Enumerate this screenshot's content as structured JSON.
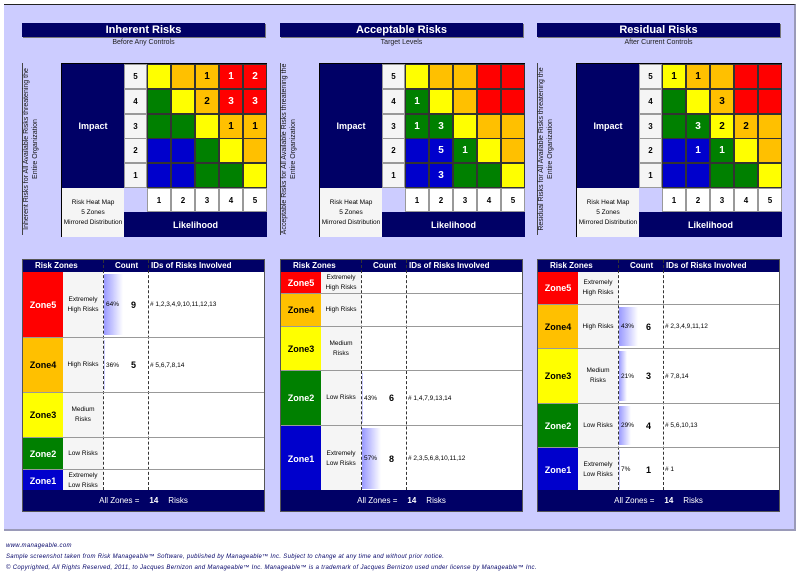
{
  "colors": {
    "navy": "#000066",
    "zone5": "#ff0000",
    "zone4": "#ffc000",
    "zone3": "#ffff00",
    "zone2": "#008000",
    "zone1": "#0000cc",
    "background": "#ccccff"
  },
  "grid_zone_map": [
    [
      3,
      4,
      4,
      5,
      5
    ],
    [
      2,
      3,
      4,
      5,
      5
    ],
    [
      2,
      2,
      3,
      4,
      4
    ],
    [
      1,
      1,
      2,
      3,
      4
    ],
    [
      1,
      1,
      2,
      2,
      3
    ]
  ],
  "common": {
    "impact": "Impact",
    "likelihood": "Likelihood",
    "impact_levels": [
      "5",
      "4",
      "3",
      "2",
      "1"
    ],
    "likelihood_levels": [
      "1",
      "2",
      "3",
      "4",
      "5"
    ],
    "heatmap_label": [
      "Risk Heat Map",
      "5 Zones",
      "Mirrored Distribution"
    ],
    "table_headers": {
      "zones": "Risk Zones",
      "count": "Count",
      "ids": "IDs of Risks Involved"
    },
    "total_prefix": "All Zones =",
    "total_suffix": "Risks"
  },
  "panels": [
    {
      "title": "Inherent Risks",
      "subtitle": "Before Any Controls",
      "side_label": "Inherent Risks for All Available Risks threatening the Entire Organization",
      "grid": [
        [
          "",
          "",
          "1",
          "1",
          "2"
        ],
        [
          "",
          "",
          "2",
          "3",
          "3"
        ],
        [
          "",
          "",
          "",
          "1",
          "1"
        ],
        [
          "",
          "",
          "",
          "",
          ""
        ],
        [
          "",
          "",
          "",
          "",
          ""
        ]
      ],
      "total": "14",
      "zones": [
        {
          "zone": "Zone5",
          "desc": "Extremely High Risks",
          "pct": "64%",
          "pct_value": 64,
          "count": "9",
          "ids": "# 1,2,3,4,9,10,11,12,13"
        },
        {
          "zone": "Zone4",
          "desc": "High Risks",
          "pct": "36%",
          "pct_value": 36,
          "count": "5",
          "ids": "# 5,6,7,8,14"
        },
        {
          "zone": "Zone3",
          "desc": "Medium Risks",
          "pct": "",
          "count": "",
          "ids": ""
        },
        {
          "zone": "Zone2",
          "desc": "Low Risks",
          "pct": "",
          "count": "",
          "ids": ""
        },
        {
          "zone": "Zone1",
          "desc": "Extremely Low Risks",
          "pct": "",
          "count": "",
          "ids": ""
        }
      ]
    },
    {
      "title": "Acceptable Risks",
      "subtitle": "Target Levels",
      "side_label": "Acceptable Risks for All Available Risks threatening the Entire Organization",
      "grid": [
        [
          "",
          "",
          "",
          "",
          ""
        ],
        [
          "1",
          "",
          "",
          "",
          ""
        ],
        [
          "1",
          "3",
          "",
          "",
          ""
        ],
        [
          "",
          "5",
          "1",
          "",
          ""
        ],
        [
          "",
          "3",
          "",
          "",
          ""
        ]
      ],
      "total": "14",
      "zones": [
        {
          "zone": "Zone5",
          "desc": "Extremely High Risks",
          "pct": "",
          "count": "",
          "ids": ""
        },
        {
          "zone": "Zone4",
          "desc": "High Risks",
          "pct": "",
          "count": "",
          "ids": ""
        },
        {
          "zone": "Zone3",
          "desc": "Medium Risks",
          "pct": "",
          "count": "",
          "ids": ""
        },
        {
          "zone": "Zone2",
          "desc": "Low Risks",
          "pct": "43%",
          "pct_value": 43,
          "count": "6",
          "ids": "# 1,4,7,9,13,14"
        },
        {
          "zone": "Zone1",
          "desc": "Extremely Low Risks",
          "pct": "57%",
          "pct_value": 57,
          "count": "8",
          "ids": "# 2,3,5,6,8,10,11,12"
        }
      ]
    },
    {
      "title": "Residual Risks",
      "subtitle": "After Current Controls",
      "side_label": "Residual Risks for All Available Risks threatening the Entire Organization",
      "grid": [
        [
          "1",
          "1",
          "",
          "",
          ""
        ],
        [
          "",
          "",
          "3",
          "",
          ""
        ],
        [
          "",
          "3",
          "2",
          "2",
          ""
        ],
        [
          "",
          "1",
          "1",
          "",
          ""
        ],
        [
          "",
          "",
          "",
          "",
          ""
        ]
      ],
      "total": "14",
      "zones": [
        {
          "zone": "Zone5",
          "desc": "Extremely High Risks",
          "pct": "",
          "count": "",
          "ids": ""
        },
        {
          "zone": "Zone4",
          "desc": "High Risks",
          "pct": "43%",
          "pct_value": 43,
          "count": "6",
          "ids": "# 2,3,4,9,11,12"
        },
        {
          "zone": "Zone3",
          "desc": "Medium Risks",
          "pct": "21%",
          "pct_value": 21,
          "count": "3",
          "ids": "# 7,8,14"
        },
        {
          "zone": "Zone2",
          "desc": "Low Risks",
          "pct": "29%",
          "pct_value": 29,
          "count": "4",
          "ids": "# 5,6,10,13"
        },
        {
          "zone": "Zone1",
          "desc": "Extremely Low Risks",
          "pct": "7%",
          "pct_value": 7,
          "count": "1",
          "ids": "# 1"
        }
      ]
    }
  ],
  "footer": {
    "url": "www.manageable.com",
    "line1": "Sample screenshot taken from Risk Manageable™ Software, published by Manageable™ Inc.  Subject to change at any time and without prior notice.",
    "line2": "© Copyrighted, All Rights Reserved, 2011, to Jacques Bernizon and Manageable™ Inc.  Manageable™ is a trademark of Jacques Bernizon used under license by Manageable™ Inc."
  }
}
